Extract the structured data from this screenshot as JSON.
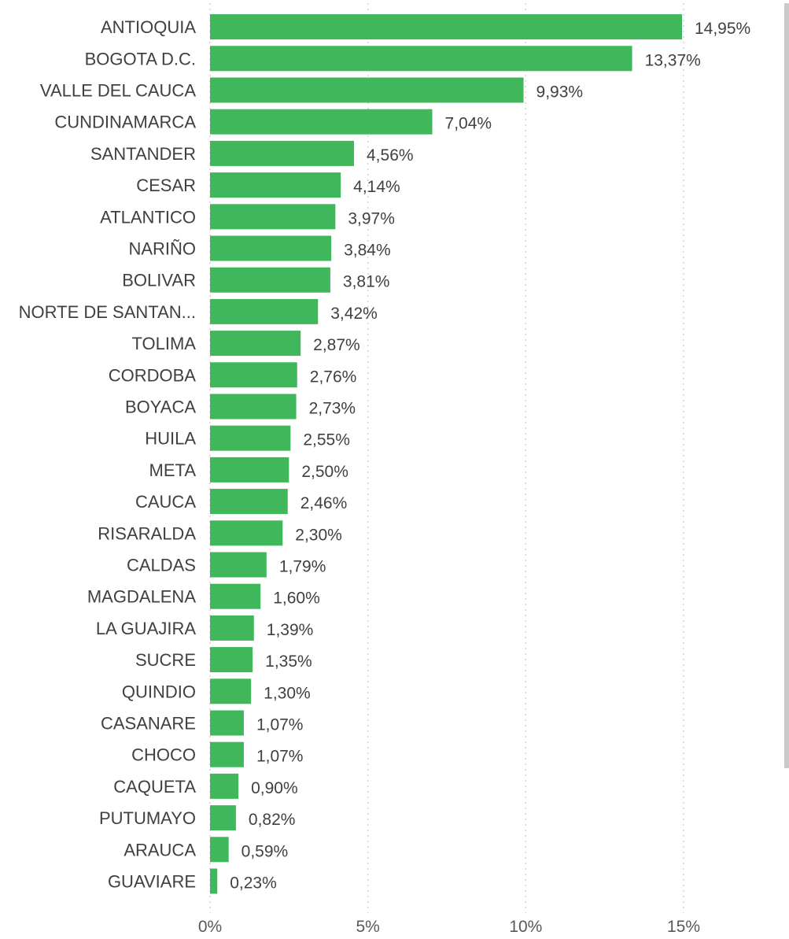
{
  "chart_data": {
    "type": "bar",
    "orientation": "horizontal",
    "categories": [
      "ANTIOQUIA",
      "BOGOTA D.C.",
      "VALLE DEL CAUCA",
      "CUNDINAMARCA",
      "SANTANDER",
      "CESAR",
      "ATLANTICO",
      "NARIÑO",
      "BOLIVAR",
      "NORTE DE SANTAN...",
      "TOLIMA",
      "CORDOBA",
      "BOYACA",
      "HUILA",
      "META",
      "CAUCA",
      "RISARALDA",
      "CALDAS",
      "MAGDALENA",
      "LA GUAJIRA",
      "SUCRE",
      "QUINDIO",
      "CASANARE",
      "CHOCO",
      "CAQUETA",
      "PUTUMAYO",
      "ARAUCA",
      "GUAVIARE"
    ],
    "values": [
      14.95,
      13.37,
      9.93,
      7.04,
      4.56,
      4.14,
      3.97,
      3.84,
      3.81,
      3.42,
      2.87,
      2.76,
      2.73,
      2.55,
      2.5,
      2.46,
      2.3,
      1.79,
      1.6,
      1.39,
      1.35,
      1.3,
      1.07,
      1.07,
      0.9,
      0.82,
      0.59,
      0.23
    ],
    "value_labels": [
      "14,95%",
      "13,37%",
      "9,93%",
      "7,04%",
      "4,56%",
      "4,14%",
      "3,97%",
      "3,84%",
      "3,81%",
      "3,42%",
      "2,87%",
      "2,76%",
      "2,73%",
      "2,55%",
      "2,50%",
      "2,46%",
      "2,30%",
      "1,79%",
      "1,60%",
      "1,39%",
      "1,35%",
      "1,30%",
      "1,07%",
      "1,07%",
      "0,90%",
      "0,82%",
      "0,59%",
      "0,23%"
    ],
    "xticks": [
      0,
      5,
      10,
      15
    ],
    "xtick_labels": [
      "0%",
      "5%",
      "10%",
      "15%"
    ],
    "xlim": [
      0,
      15
    ],
    "grid": "vertical-dotted",
    "bar_color": "#3fb75a",
    "title": "",
    "xlabel": "",
    "ylabel": ""
  }
}
